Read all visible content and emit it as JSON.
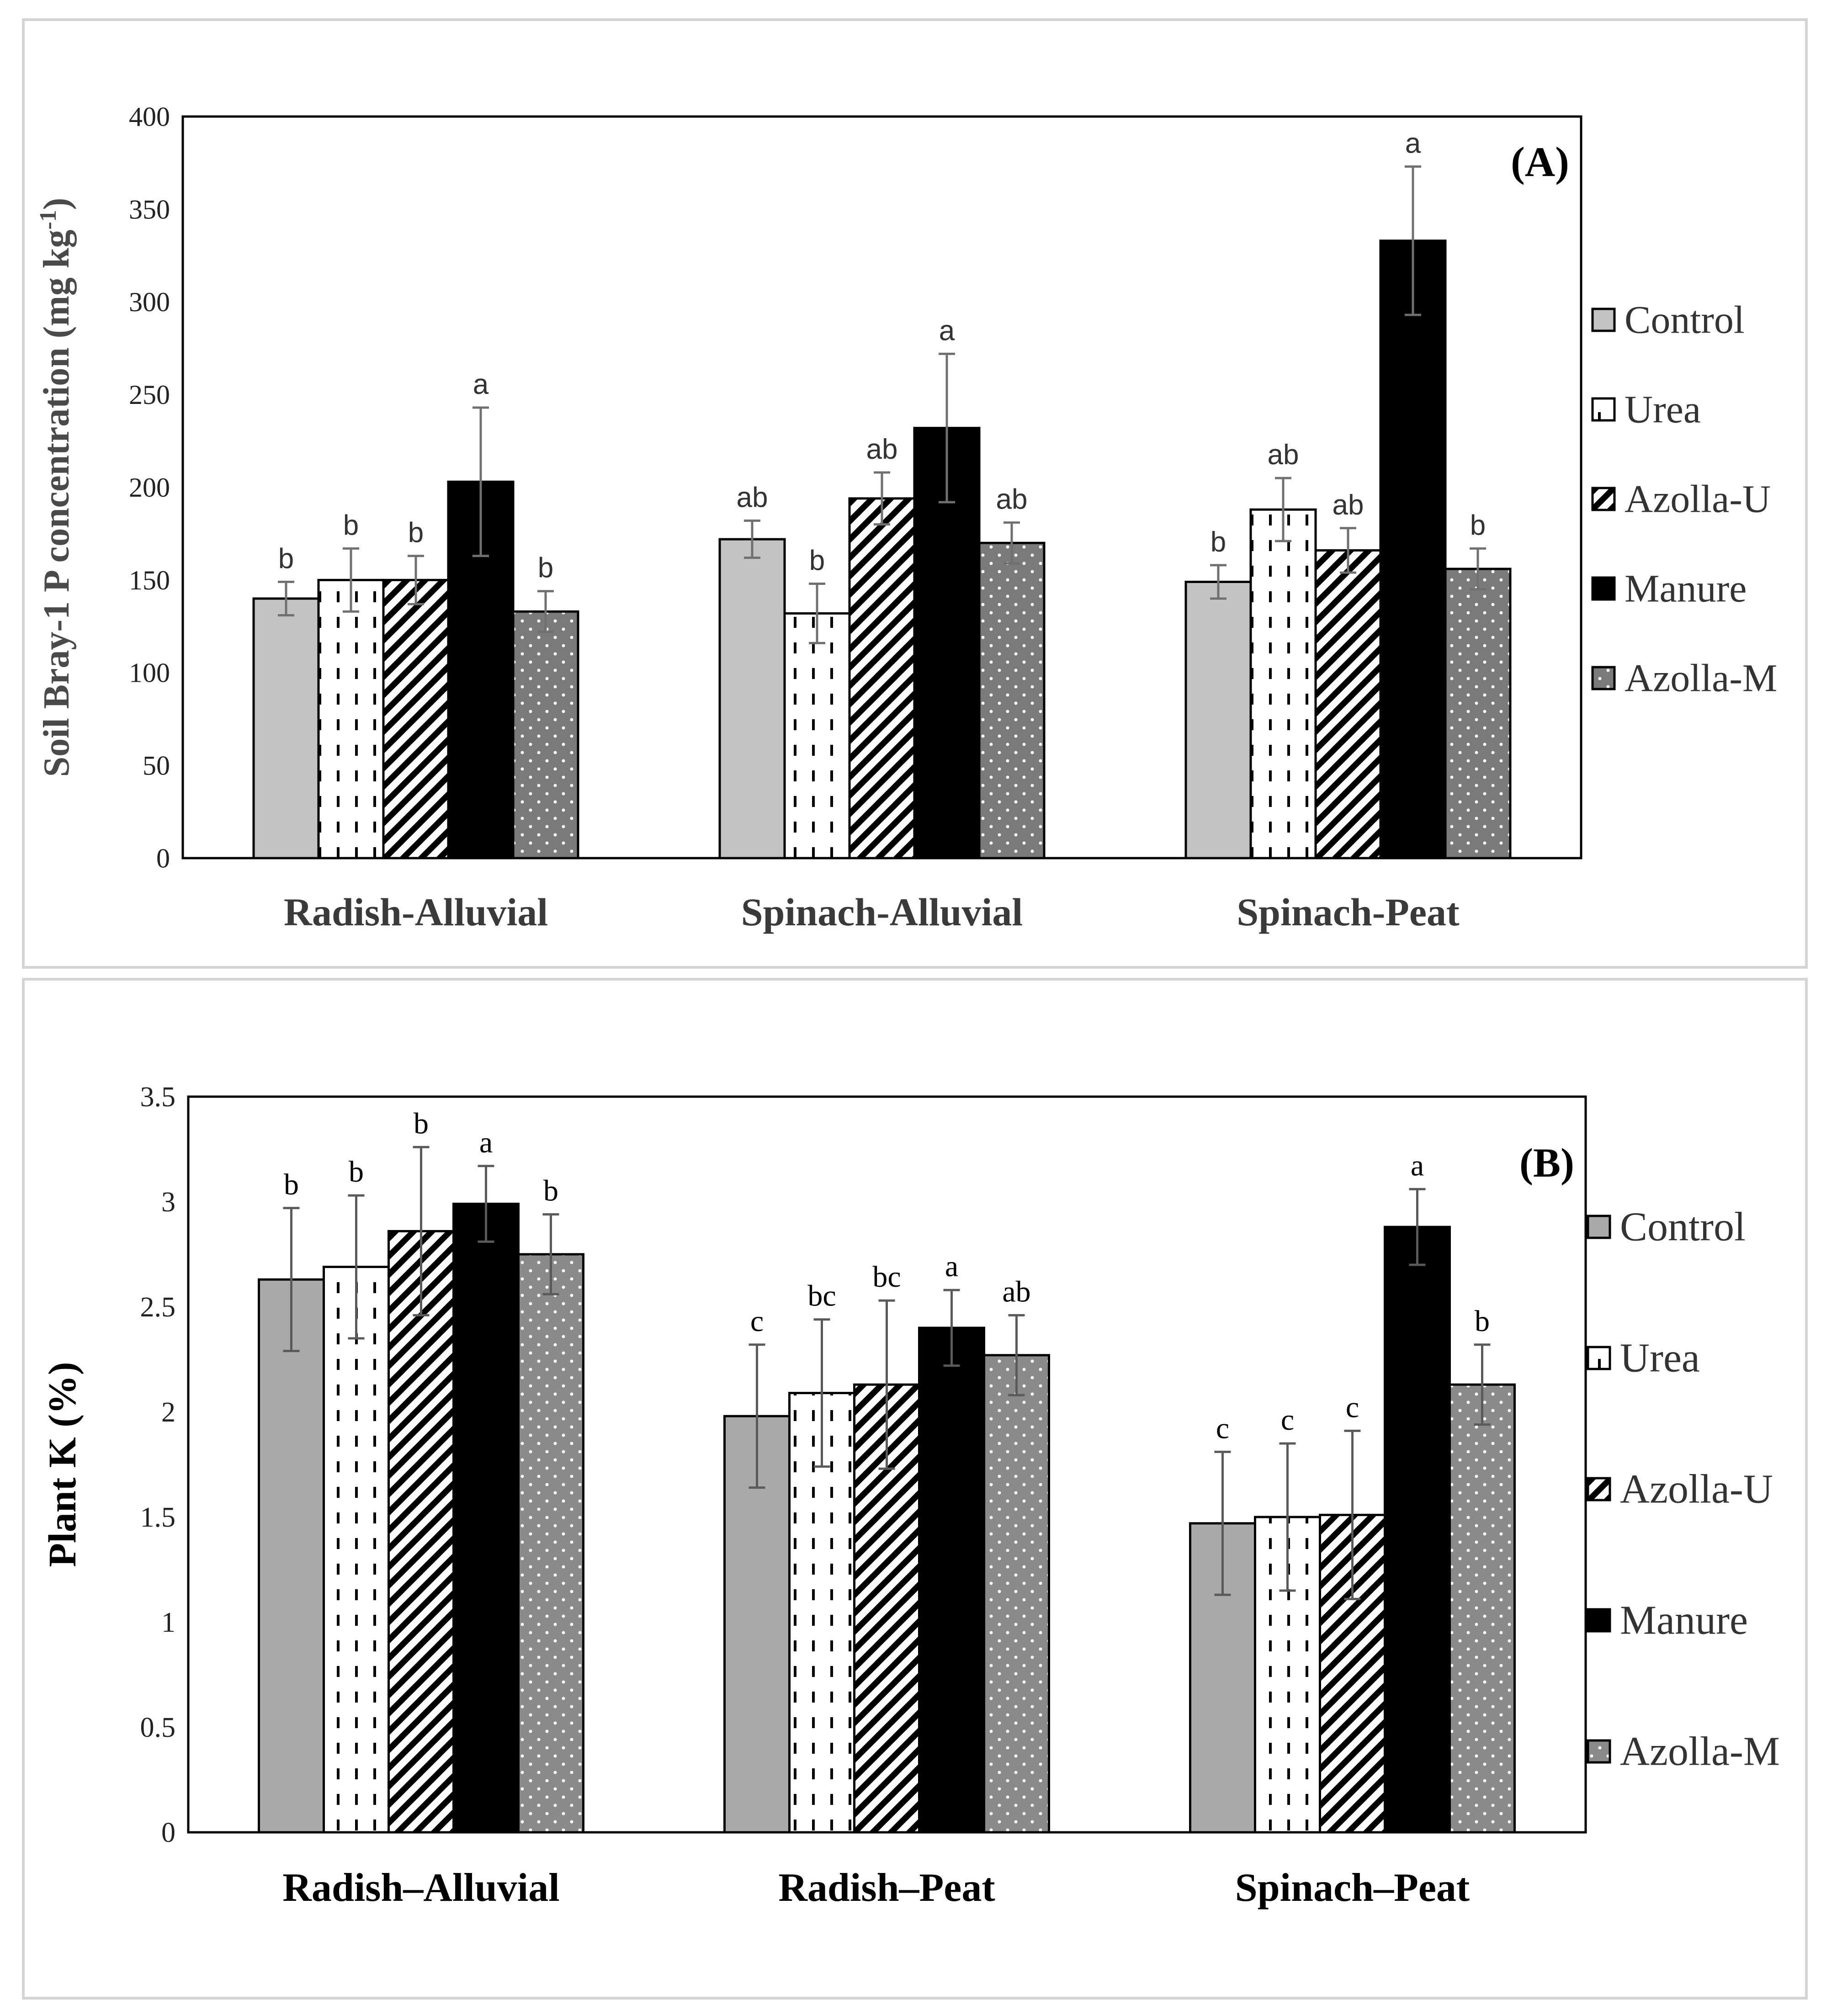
{
  "chart_data": [
    {
      "type": "bar",
      "panel_label": "(A)",
      "ylabel": "Soil Bray-1 P concentration (mg kg",
      "ylabel_sup": "-1",
      "ylabel_close": ")",
      "ylim": [
        0,
        400
      ],
      "yticks": [
        0,
        50,
        100,
        150,
        200,
        250,
        300,
        350,
        400
      ],
      "categories": [
        "Radish-Alluvial",
        "Spinach-Alluvial",
        "Spinach-Peat"
      ],
      "series": [
        {
          "name": "Control",
          "values": [
            140,
            172,
            149
          ],
          "errors": [
            9,
            10,
            9
          ],
          "letters": [
            "b",
            "ab",
            "b"
          ]
        },
        {
          "name": "Urea",
          "values": [
            150,
            132,
            188
          ],
          "errors": [
            17,
            16,
            17
          ],
          "letters": [
            "b",
            "b",
            "ab"
          ]
        },
        {
          "name": "Azolla-U",
          "values": [
            150,
            194,
            166
          ],
          "errors": [
            13,
            14,
            12
          ],
          "letters": [
            "b",
            "ab",
            "ab"
          ]
        },
        {
          "name": "Manure",
          "values": [
            203,
            232,
            333
          ],
          "errors": [
            40,
            40,
            40
          ],
          "letters": [
            "a",
            "a",
            "a"
          ]
        },
        {
          "name": "Azolla-M",
          "values": [
            133,
            170,
            156
          ],
          "errors": [
            11,
            11,
            11
          ],
          "letters": [
            "b",
            "ab",
            "b"
          ]
        }
      ]
    },
    {
      "type": "bar",
      "panel_label": "(B)",
      "ylabel": "Plant K (%)",
      "ylim": [
        0,
        3.5
      ],
      "yticks": [
        0,
        0.5,
        1,
        1.5,
        2,
        2.5,
        3,
        3.5
      ],
      "categories": [
        "Radish–Alluvial",
        "Radish–Peat",
        "Spinach–Peat"
      ],
      "series": [
        {
          "name": "Control",
          "values": [
            2.63,
            1.98,
            1.47
          ],
          "errors": [
            0.34,
            0.34,
            0.34
          ],
          "letters": [
            "b",
            "c",
            "c"
          ]
        },
        {
          "name": "Urea",
          "values": [
            2.69,
            2.09,
            1.5
          ],
          "errors": [
            0.34,
            0.35,
            0.35
          ],
          "letters": [
            "b",
            "bc",
            "c"
          ]
        },
        {
          "name": "Azolla-U",
          "values": [
            2.86,
            2.13,
            1.51
          ],
          "errors": [
            0.4,
            0.4,
            0.4
          ],
          "letters": [
            "b",
            "bc",
            "c"
          ]
        },
        {
          "name": "Manure",
          "values": [
            2.99,
            2.4,
            2.88
          ],
          "errors": [
            0.18,
            0.18,
            0.18
          ],
          "letters": [
            "a",
            "a",
            "a"
          ]
        },
        {
          "name": "Azolla-M",
          "values": [
            2.75,
            2.27,
            2.13
          ],
          "errors": [
            0.19,
            0.19,
            0.19
          ],
          "letters": [
            "b",
            "ab",
            "b"
          ]
        }
      ]
    }
  ]
}
